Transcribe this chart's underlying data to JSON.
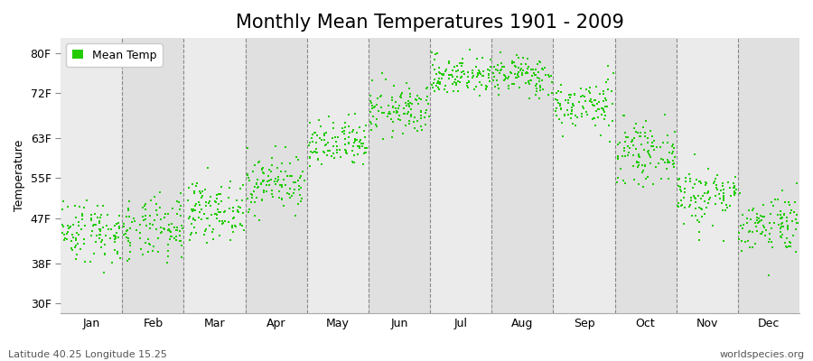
{
  "title": "Monthly Mean Temperatures 1901 - 2009",
  "ylabel": "Temperature",
  "xlabel": "",
  "footnote_left": "Latitude 40.25 Longitude 15.25",
  "footnote_right": "worldspecies.org",
  "legend_label": "Mean Temp",
  "years": 109,
  "start_year": 1901,
  "end_year": 2009,
  "monthly_means_F": [
    44.5,
    44.5,
    48.5,
    54.0,
    61.5,
    68.5,
    75.5,
    75.5,
    69.5,
    60.0,
    51.5,
    46.0
  ],
  "monthly_stds_F": [
    3.2,
    3.2,
    2.8,
    2.8,
    2.5,
    2.5,
    2.0,
    2.0,
    2.5,
    2.8,
    3.0,
    3.0
  ],
  "yticks": [
    30,
    38,
    47,
    55,
    63,
    72,
    80
  ],
  "ytick_labels": [
    "30F",
    "38F",
    "47F",
    "55F",
    "63F",
    "72F",
    "80F"
  ],
  "ylim": [
    28,
    83
  ],
  "month_names": [
    "Jan",
    "Feb",
    "Mar",
    "Apr",
    "May",
    "Jun",
    "Jul",
    "Aug",
    "Sep",
    "Oct",
    "Nov",
    "Dec"
  ],
  "dot_color": "#22cc00",
  "dot_size": 3.5,
  "background_color": "#ffffff",
  "plot_bg_dark": "#e0e0e0",
  "plot_bg_light": "#ebebeb",
  "title_fontsize": 15,
  "label_fontsize": 9,
  "tick_fontsize": 9,
  "footnote_fontsize": 8
}
